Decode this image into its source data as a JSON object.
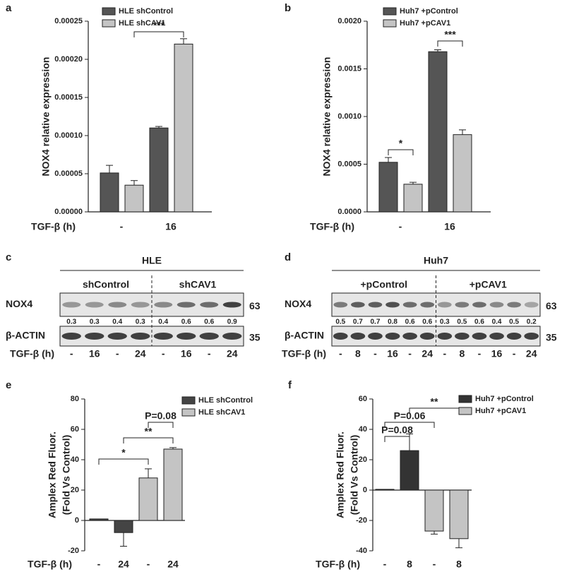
{
  "chart_data": [
    {
      "type": "bar",
      "panel": "a",
      "ylabel": [
        "NOX4 relative expression"
      ],
      "x_label": "TGF-β (h)",
      "categories": [
        "-",
        "16"
      ],
      "series": [
        {
          "name": "HLE shControl",
          "color": "#555555",
          "values": [
            5.1e-05,
            0.00011
          ],
          "errors": [
            1e-05,
            2e-06
          ]
        },
        {
          "name": "HLE  shCAV1",
          "color": "#c4c4c4",
          "values": [
            3.5e-05,
            0.00022
          ],
          "errors": [
            6e-06,
            7e-06
          ]
        }
      ],
      "ylim": [
        0,
        0.00025
      ],
      "yticks": [
        {
          "value": 0,
          "label": "0.00000"
        },
        {
          "value": 5e-05,
          "label": "0.00005"
        },
        {
          "value": 0.0001,
          "label": "0.00010"
        },
        {
          "value": 0.00015,
          "label": "0.00015"
        },
        {
          "value": 0.0002,
          "label": "0.00020"
        },
        {
          "value": 0.00025,
          "label": "0.00025"
        }
      ],
      "annotations": [
        "***"
      ]
    },
    {
      "type": "bar",
      "panel": "b",
      "ylabel": [
        "NOX4 relative expression"
      ],
      "x_label": "TGF-β (h)",
      "categories": [
        "-",
        "16"
      ],
      "series": [
        {
          "name": "Huh7 +pControl",
          "color": "#555555",
          "values": [
            0.00052,
            0.00168
          ],
          "errors": [
            5e-05,
            2e-05
          ]
        },
        {
          "name": "Huh7  +pCAV1",
          "color": "#c4c4c4",
          "values": [
            0.00029,
            0.00081
          ],
          "errors": [
            2e-05,
            5e-05
          ]
        }
      ],
      "ylim": [
        0,
        0.002
      ],
      "yticks": [
        {
          "value": 0,
          "label": "0.0000"
        },
        {
          "value": 0.0005,
          "label": "0.0005"
        },
        {
          "value": 0.001,
          "label": "0.0010"
        },
        {
          "value": 0.0015,
          "label": "0.0015"
        },
        {
          "value": 0.002,
          "label": "0.0020"
        }
      ],
      "annotations": [
        "*",
        "***"
      ]
    },
    {
      "type": "bar",
      "panel": "e",
      "ylabel": [
        "Amplex Red Fluor.",
        "(Fold Vs Control)"
      ],
      "x_label": "TGF-β (h)",
      "categories": [
        "-",
        "24",
        "-",
        "24"
      ],
      "series": [
        {
          "name": "HLE shControl",
          "color": "#444444",
          "values": [
            1,
            -8,
            null,
            null
          ],
          "errors": [
            null,
            9,
            null,
            null
          ]
        },
        {
          "name": "HLE shCAV1",
          "color": "#c4c4c4",
          "values": [
            null,
            null,
            28,
            47
          ],
          "errors": [
            null,
            null,
            6,
            1
          ]
        }
      ],
      "ylim": [
        -20,
        80
      ],
      "yticks": [
        -20,
        0,
        20,
        40,
        60,
        80
      ],
      "annotations": [
        "*",
        "**",
        "P=0.08"
      ]
    },
    {
      "type": "bar",
      "panel": "f",
      "ylabel": [
        "Amplex Red Fluor.",
        "(Fold Vs Control)"
      ],
      "x_label": "TGF-β (h)",
      "categories": [
        "-",
        "8",
        "-",
        "8"
      ],
      "series": [
        {
          "name": "Huh7 +pControl",
          "color": "#333333",
          "values": [
            0.5,
            26,
            null,
            null
          ],
          "errors": [
            null,
            11,
            null,
            null
          ]
        },
        {
          "name": "Huh7 +pCAV1",
          "color": "#c4c4c4",
          "values": [
            null,
            null,
            -27,
            -32
          ],
          "errors": [
            null,
            null,
            2,
            6
          ]
        }
      ],
      "ylim": [
        -40,
        60
      ],
      "yticks": [
        -40,
        -20,
        0,
        20,
        40,
        60
      ],
      "annotations": [
        "P=0.08",
        "P=0.06",
        "**"
      ]
    }
  ],
  "blots": [
    {
      "panel": "c",
      "title": "HLE",
      "groups": [
        "shControl",
        "shCAV1"
      ],
      "rows": [
        "NOX4",
        "β-ACTIN"
      ],
      "sizes": [
        "63",
        "35"
      ],
      "quantification": [
        0.3,
        0.3,
        0.4,
        0.3,
        0.4,
        0.6,
        0.6,
        0.9
      ],
      "x_label": "TGF-β (h)",
      "lanes": [
        "-",
        "16",
        "-",
        "24",
        "-",
        "16",
        "-",
        "24"
      ]
    },
    {
      "panel": "d",
      "title": "Huh7",
      "groups": [
        "+pControl",
        "+pCAV1"
      ],
      "rows": [
        "NOX4",
        "β-ACTIN"
      ],
      "sizes": [
        "63",
        "35"
      ],
      "quantification": [
        0.5,
        0.7,
        0.7,
        0.8,
        0.6,
        0.6,
        0.3,
        0.5,
        0.6,
        0.4,
        0.5,
        0.2
      ],
      "x_label": "TGF-β (h)",
      "lanes": [
        "-",
        "8",
        "-",
        "16",
        "-",
        "24",
        "-",
        "8",
        "-",
        "16",
        "-",
        "24"
      ]
    }
  ]
}
